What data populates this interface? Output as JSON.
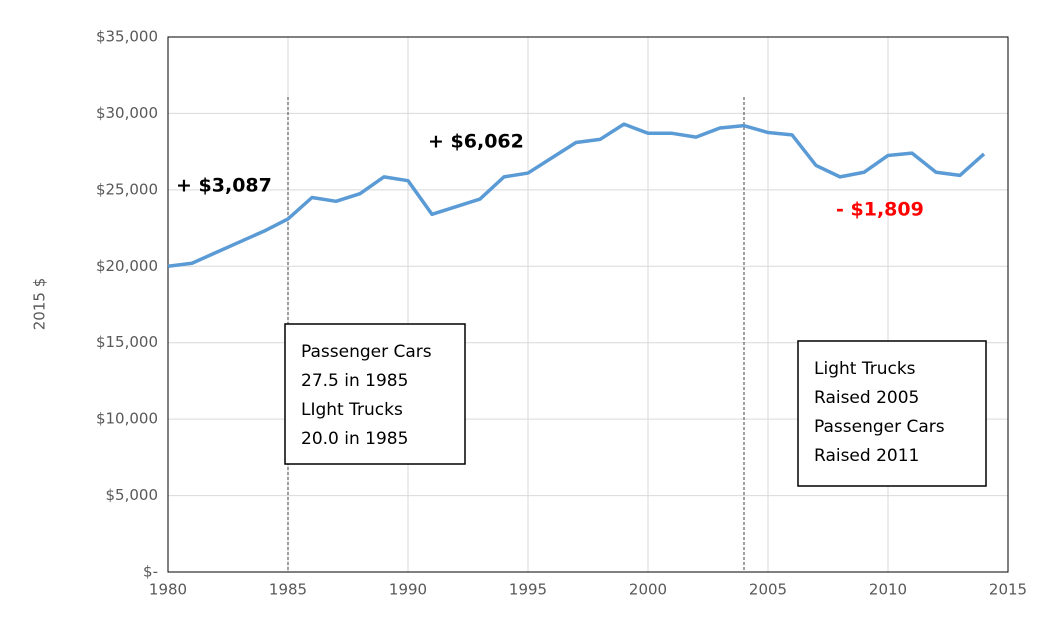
{
  "chart_data": {
    "type": "line",
    "y_label": "2015 $",
    "x": [
      1980,
      1981,
      1982,
      1983,
      1984,
      1985,
      1986,
      1987,
      1988,
      1989,
      1990,
      1991,
      1992,
      1993,
      1994,
      1995,
      1996,
      1997,
      1998,
      1999,
      2000,
      2001,
      2002,
      2003,
      2004,
      2005,
      2006,
      2007,
      2008,
      2009,
      2010,
      2011,
      2012,
      2013,
      2014
    ],
    "series": [
      {
        "color": "#5b9bd5",
        "values": [
          20000,
          20200,
          20900,
          21600,
          22300,
          23100,
          24500,
          24250,
          24750,
          25850,
          25600,
          23400,
          23900,
          24400,
          25850,
          26100,
          27100,
          28100,
          28300,
          29300,
          28700,
          28700,
          28450,
          29050,
          29200,
          28750,
          28600,
          26600,
          25850,
          26150,
          27250,
          27400,
          26150,
          25950,
          27350
        ]
      }
    ],
    "xlim": [
      1980,
      2015
    ],
    "xticks": [
      1980,
      1985,
      1990,
      1995,
      2000,
      2005,
      2010,
      2015
    ],
    "ylim": [
      0,
      35000
    ],
    "yticks": [
      {
        "value": 0,
        "label": "$-"
      },
      {
        "value": 5000,
        "label": "$5,000"
      },
      {
        "value": 10000,
        "label": "$10,000"
      },
      {
        "value": 15000,
        "label": "$15,000"
      },
      {
        "value": 20000,
        "label": "$20,000"
      },
      {
        "value": 25000,
        "label": "$25,000"
      },
      {
        "value": 30000,
        "label": "$30,000"
      },
      {
        "value": 35000,
        "label": "$35,000"
      }
    ],
    "grid": true,
    "vlines": [
      1985,
      2004
    ],
    "annotations": [
      {
        "text": "+ $3,087",
        "color": "#000000"
      },
      {
        "text": "+ $6,062",
        "color": "#000000"
      },
      {
        "text": "- $1,809",
        "color": "#ff0000"
      }
    ],
    "notes": [
      [
        "Passenger Cars",
        "27.5 in 1985",
        "LIght Trucks",
        "20.0 in 1985"
      ],
      [
        "Light Trucks",
        "Raised 2005",
        "Passenger Cars",
        "Raised 2011"
      ]
    ]
  }
}
